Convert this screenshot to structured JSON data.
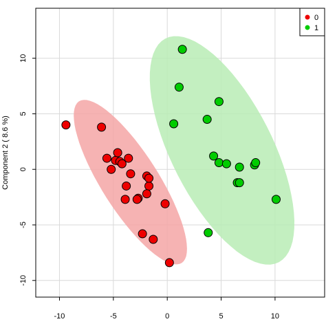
{
  "chart_data": {
    "type": "scatter",
    "title": "",
    "xlabel": "",
    "ylabel": "Component 2 ( 8.6 %)",
    "xlim": [
      -12.2,
      14.6
    ],
    "ylim": [
      -11.5,
      14.5
    ],
    "xticks": [
      -10,
      -5,
      0,
      5,
      10
    ],
    "yticks": [
      -10,
      -5,
      0,
      5,
      10
    ],
    "grid": true,
    "legend_position": "top-right",
    "series": [
      {
        "name": "0",
        "color": "#ee0000",
        "ellipse_color": "#f4a6a6",
        "x": [
          -9.4,
          -6.1,
          -5.6,
          -5.2,
          -4.8,
          -4.6,
          -4.4,
          -4.2,
          -3.6,
          -3.4,
          -3.8,
          -2.7,
          -3.9,
          -2.8,
          -1.9,
          -1.7,
          -1.9,
          -1.7,
          -0.2,
          -1.3,
          -2.3,
          0.2
        ],
        "y": [
          4.0,
          3.8,
          1.0,
          0.0,
          0.8,
          1.5,
          0.7,
          0.5,
          1.0,
          -0.4,
          -1.5,
          -2.6,
          -2.7,
          -2.7,
          -0.6,
          -1.5,
          -2.2,
          -0.8,
          -3.1,
          -6.3,
          -5.8,
          -8.4
        ]
      },
      {
        "name": "1",
        "color": "#00cc00",
        "ellipse_color": "#b9ecb5",
        "x": [
          1.4,
          1.1,
          4.8,
          0.6,
          3.7,
          4.3,
          4.8,
          5.5,
          6.7,
          6.5,
          6.7,
          8.1,
          8.2,
          10.1,
          3.8
        ],
        "y": [
          10.8,
          7.4,
          6.1,
          4.1,
          4.5,
          1.2,
          0.6,
          0.5,
          0.2,
          -1.2,
          -1.2,
          0.4,
          0.6,
          -2.7,
          -5.7
        ]
      }
    ]
  }
}
